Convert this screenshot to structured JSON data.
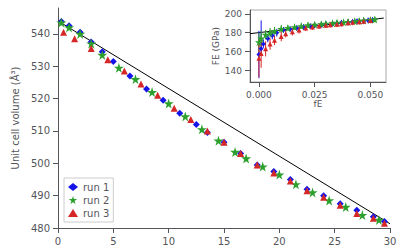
{
  "chart_data": [
    {
      "type": "scatter",
      "ylabel": "Unit cell volume (Å³)",
      "xlim": [
        0,
        30
      ],
      "ylim": [
        480,
        548
      ],
      "xticks": [
        0,
        5,
        10,
        15,
        20,
        25,
        30
      ],
      "yticks": [
        480,
        490,
        500,
        510,
        520,
        530,
        540
      ],
      "grid": false,
      "legend": "lower left",
      "series": [
        {
          "name": "run 1",
          "type": "scatter",
          "marker": "diamond",
          "color": "#1414e8",
          "x": [
            0.3,
            1.0,
            2.0,
            3.0,
            4.0,
            5.0,
            6.5,
            8.0,
            9.5,
            11.0,
            12.5,
            13.5,
            15.0,
            16.5,
            18.0,
            19.5,
            21.0,
            22.5,
            24.0,
            25.5,
            27.0,
            28.5,
            29.5
          ],
          "values": [
            543.8,
            542.5,
            540.5,
            537.5,
            534.5,
            531.5,
            527.0,
            523.0,
            519.5,
            515.5,
            512.0,
            509.5,
            506.5,
            503.0,
            499.5,
            497.5,
            495.0,
            492.0,
            490.0,
            487.5,
            485.5,
            483.5,
            482.0
          ]
        },
        {
          "name": "run 2",
          "type": "scatter",
          "marker": "star",
          "color": "#2ca02c",
          "x": [
            0.3,
            1.0,
            2.0,
            3.0,
            4.0,
            5.5,
            7.0,
            8.5,
            10.0,
            11.5,
            13.0,
            14.5,
            16.0,
            17.0,
            18.5,
            20.0,
            21.5,
            23.0,
            24.5,
            26.0,
            27.5,
            29.0
          ],
          "values": [
            543.5,
            542.0,
            540.0,
            537.0,
            533.5,
            529.5,
            526.0,
            522.0,
            518.5,
            514.5,
            510.5,
            507.0,
            503.5,
            501.5,
            499.0,
            496.5,
            493.5,
            491.0,
            488.5,
            486.5,
            484.0,
            482.5
          ]
        },
        {
          "name": "run 3",
          "type": "scatter",
          "marker": "triangle",
          "color": "#d62728",
          "x": [
            0.5,
            1.5,
            3.0,
            4.5,
            6.0,
            7.5,
            9.0,
            10.5,
            12.0,
            13.5,
            15.0,
            16.5,
            18.0,
            19.5,
            21.0,
            22.5,
            24.0,
            25.5,
            27.0,
            28.5,
            29.5
          ],
          "values": [
            540.5,
            538.5,
            535.5,
            532.0,
            528.5,
            524.5,
            521.0,
            517.0,
            513.5,
            510.0,
            506.5,
            503.0,
            499.5,
            497.0,
            494.5,
            491.5,
            489.5,
            487.0,
            484.5,
            483.0,
            481.5
          ]
        },
        {
          "type": "line",
          "line_style": "solid",
          "color": "#000000",
          "x": [
            0,
            30
          ],
          "values": [
            544.0,
            481.3
          ]
        }
      ]
    },
    {
      "type": "scatter",
      "xlabel": "fE",
      "ylabel": "FE (GPa)",
      "xlim": [
        -0.004,
        0.057
      ],
      "ylim": [
        128,
        204
      ],
      "xticks": [
        {
          "value": 0.0,
          "label": "0.000"
        },
        {
          "value": 0.025,
          "label": "0.025"
        },
        {
          "value": 0.05,
          "label": "0.050"
        }
      ],
      "yticks": [
        140,
        160,
        180,
        200
      ],
      "grid": false,
      "series": [
        {
          "type": "scatter",
          "marker": "diamond",
          "color": "#1414e8",
          "x": [
            0.0,
            0.001,
            0.002,
            0.004,
            0.006,
            0.008,
            0.011,
            0.014,
            0.017,
            0.02,
            0.023,
            0.025,
            0.028,
            0.03,
            0.033,
            0.035,
            0.037,
            0.04,
            0.042,
            0.044,
            0.047,
            0.049,
            0.051
          ],
          "values": [
            157,
            163,
            168,
            174,
            177,
            180,
            183,
            184,
            185,
            186,
            187,
            188,
            188.5,
            189,
            189.5,
            190,
            190.5,
            191,
            191.5,
            192,
            192.5,
            193,
            193.5
          ],
          "error_minus": [
            25,
            5,
            4,
            4,
            4,
            4,
            3,
            3,
            3,
            3,
            3,
            3,
            3,
            3,
            3,
            3,
            3,
            3,
            3,
            3,
            3,
            3,
            3
          ],
          "error_plus": [
            25,
            30,
            5,
            4,
            4,
            4,
            3,
            3,
            3,
            3,
            3,
            3,
            3,
            3,
            3,
            3,
            3,
            3,
            3,
            3,
            3,
            3,
            3
          ]
        },
        {
          "type": "scatter",
          "marker": "star",
          "color": "#2ca02c",
          "x": [
            0.0,
            0.001,
            0.003,
            0.005,
            0.007,
            0.01,
            0.013,
            0.016,
            0.019,
            0.022,
            0.025,
            0.028,
            0.03,
            0.033,
            0.035,
            0.038,
            0.04,
            0.043,
            0.045,
            0.047,
            0.05,
            0.052
          ],
          "values": [
            170,
            174,
            178,
            180,
            182,
            184,
            185,
            186,
            187,
            188,
            188.5,
            189,
            189.5,
            190,
            190.5,
            191,
            191.5,
            192,
            192.5,
            193,
            193.5,
            194
          ],
          "error_minus": [
            10,
            8,
            5,
            5,
            4,
            4,
            3,
            3,
            3,
            3,
            3,
            3,
            3,
            3,
            3,
            3,
            3,
            3,
            3,
            3,
            3,
            3
          ],
          "error_plus": [
            10,
            8,
            5,
            5,
            4,
            4,
            3,
            3,
            3,
            3,
            3,
            3,
            3,
            3,
            3,
            3,
            3,
            3,
            3,
            3,
            3,
            3
          ]
        },
        {
          "type": "scatter",
          "marker": "triangle",
          "color": "#d62728",
          "x": [
            0.0,
            0.001,
            0.003,
            0.005,
            0.007,
            0.01,
            0.012,
            0.015,
            0.018,
            0.021,
            0.024,
            0.027,
            0.03,
            0.032,
            0.035,
            0.037,
            0.04,
            0.042,
            0.045,
            0.047,
            0.05
          ],
          "values": [
            153,
            158,
            163,
            168,
            172,
            176,
            179,
            181,
            183,
            185,
            186,
            187,
            188,
            188.5,
            189,
            189.5,
            190.5,
            191,
            191.5,
            192,
            193
          ],
          "error_minus": [
            20,
            15,
            8,
            6,
            5,
            5,
            4,
            4,
            4,
            3,
            3,
            3,
            3,
            3,
            3,
            3,
            3,
            3,
            3,
            3,
            3
          ],
          "error_plus": [
            20,
            15,
            8,
            6,
            5,
            5,
            4,
            4,
            4,
            3,
            3,
            3,
            3,
            3,
            3,
            3,
            3,
            3,
            3,
            3,
            3
          ]
        },
        {
          "type": "line",
          "line_style": "solid",
          "color": "#000000",
          "x": [
            -0.004,
            0.056
          ],
          "values": [
            179.0,
            195.5
          ]
        }
      ]
    }
  ]
}
